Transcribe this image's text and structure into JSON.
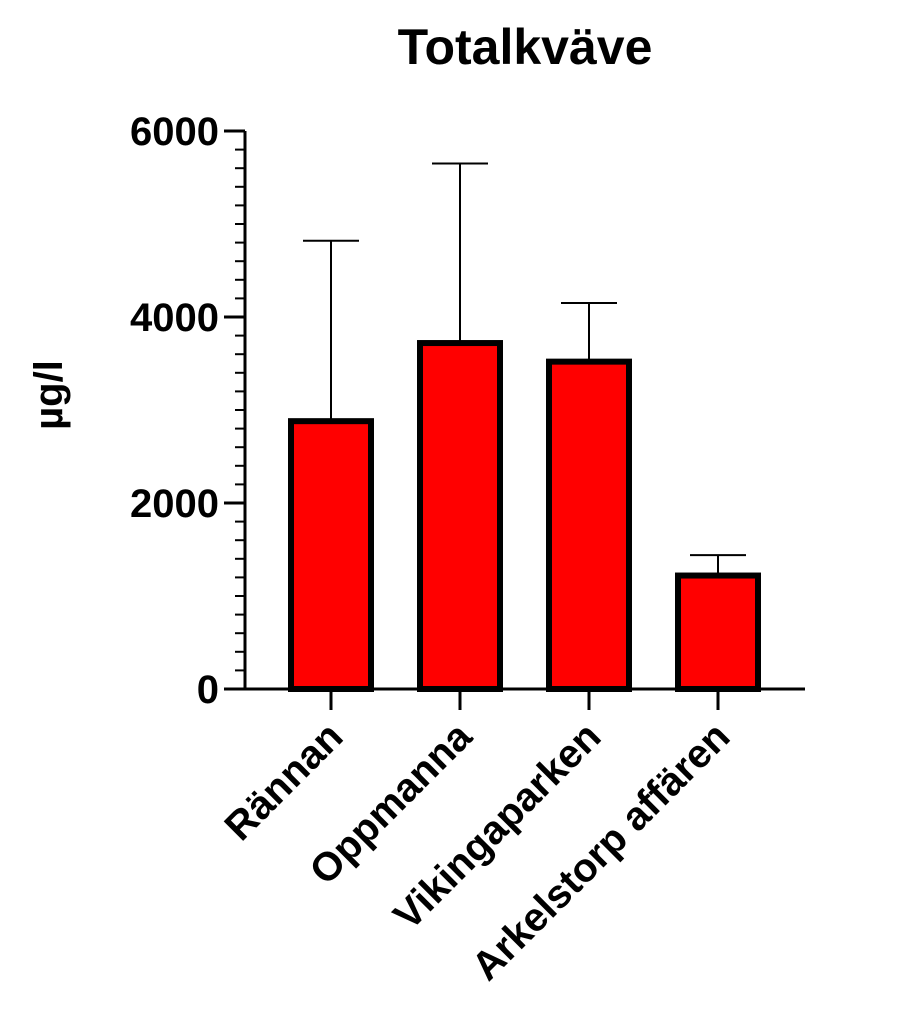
{
  "chart_data": {
    "type": "bar",
    "title": "Totalkväve",
    "xlabel": "",
    "ylabel": "µg/l",
    "categories": [
      "Rännan",
      "Oppmanna",
      "Vikingaparken",
      "Arkelstorp affären"
    ],
    "values": [
      2880,
      3720,
      3520,
      1220
    ],
    "error_upper": [
      4820,
      5650,
      4150,
      1440
    ],
    "ylim": [
      0,
      6000
    ],
    "yticks": [
      0,
      2000,
      4000,
      6000
    ],
    "ytick_labels": [
      "0",
      "2000",
      "4000",
      "6000"
    ],
    "minor_ticks_per_major": 10,
    "grid": false,
    "legend": "none",
    "bar_color": "#ff0000",
    "bar_edge_color": "#000000"
  }
}
